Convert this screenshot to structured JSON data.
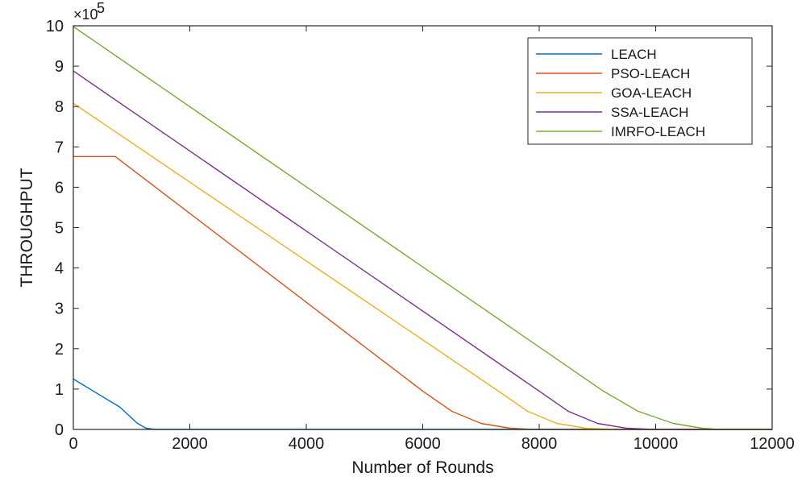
{
  "chart_data": {
    "type": "line",
    "title": "",
    "xlabel": "Number of Rounds",
    "ylabel": "THROUGHPUT",
    "xlim": [
      0,
      12000
    ],
    "ylim": [
      0,
      10
    ],
    "y_multiplier_label": "×10",
    "y_multiplier_exponent": "5",
    "xticks": [
      "0",
      "2000",
      "4000",
      "6000",
      "8000",
      "10000",
      "12000"
    ],
    "yticks": [
      "0",
      "1",
      "2",
      "3",
      "4",
      "5",
      "6",
      "7",
      "8",
      "9",
      "10"
    ],
    "grid": false,
    "legend_position": "top-right",
    "series": [
      {
        "name": "LEACH",
        "color": "#0072BD",
        "points": [
          [
            0,
            1.25
          ],
          [
            800,
            0.55
          ],
          [
            1100,
            0.15
          ],
          [
            1250,
            0.03
          ],
          [
            1400,
            0.0
          ],
          [
            12000,
            0.0
          ]
        ]
      },
      {
        "name": "PSO-LEACH",
        "color": "#D95319",
        "points": [
          [
            0,
            6.76
          ],
          [
            720,
            6.76
          ],
          [
            6000,
            0.95
          ],
          [
            6500,
            0.45
          ],
          [
            7000,
            0.15
          ],
          [
            7500,
            0.03
          ],
          [
            7900,
            0.0
          ],
          [
            12000,
            0.0
          ]
        ]
      },
      {
        "name": "GOA-LEACH",
        "color": "#EDB120",
        "points": [
          [
            0,
            8.08
          ],
          [
            7300,
            0.95
          ],
          [
            7800,
            0.45
          ],
          [
            8300,
            0.15
          ],
          [
            8800,
            0.03
          ],
          [
            9300,
            0.0
          ],
          [
            12000,
            0.0
          ]
        ]
      },
      {
        "name": "SSA-LEACH",
        "color": "#7E2F8E",
        "points": [
          [
            0,
            8.88
          ],
          [
            8000,
            0.95
          ],
          [
            8500,
            0.45
          ],
          [
            9000,
            0.15
          ],
          [
            9500,
            0.03
          ],
          [
            9950,
            0.0
          ],
          [
            12000,
            0.0
          ]
        ]
      },
      {
        "name": "IMRFO-LEACH",
        "color": "#77AC30",
        "points": [
          [
            0,
            9.98
          ],
          [
            9100,
            0.95
          ],
          [
            9700,
            0.45
          ],
          [
            10300,
            0.15
          ],
          [
            10800,
            0.03
          ],
          [
            11100,
            0.0
          ],
          [
            12000,
            0.0
          ]
        ]
      }
    ]
  }
}
